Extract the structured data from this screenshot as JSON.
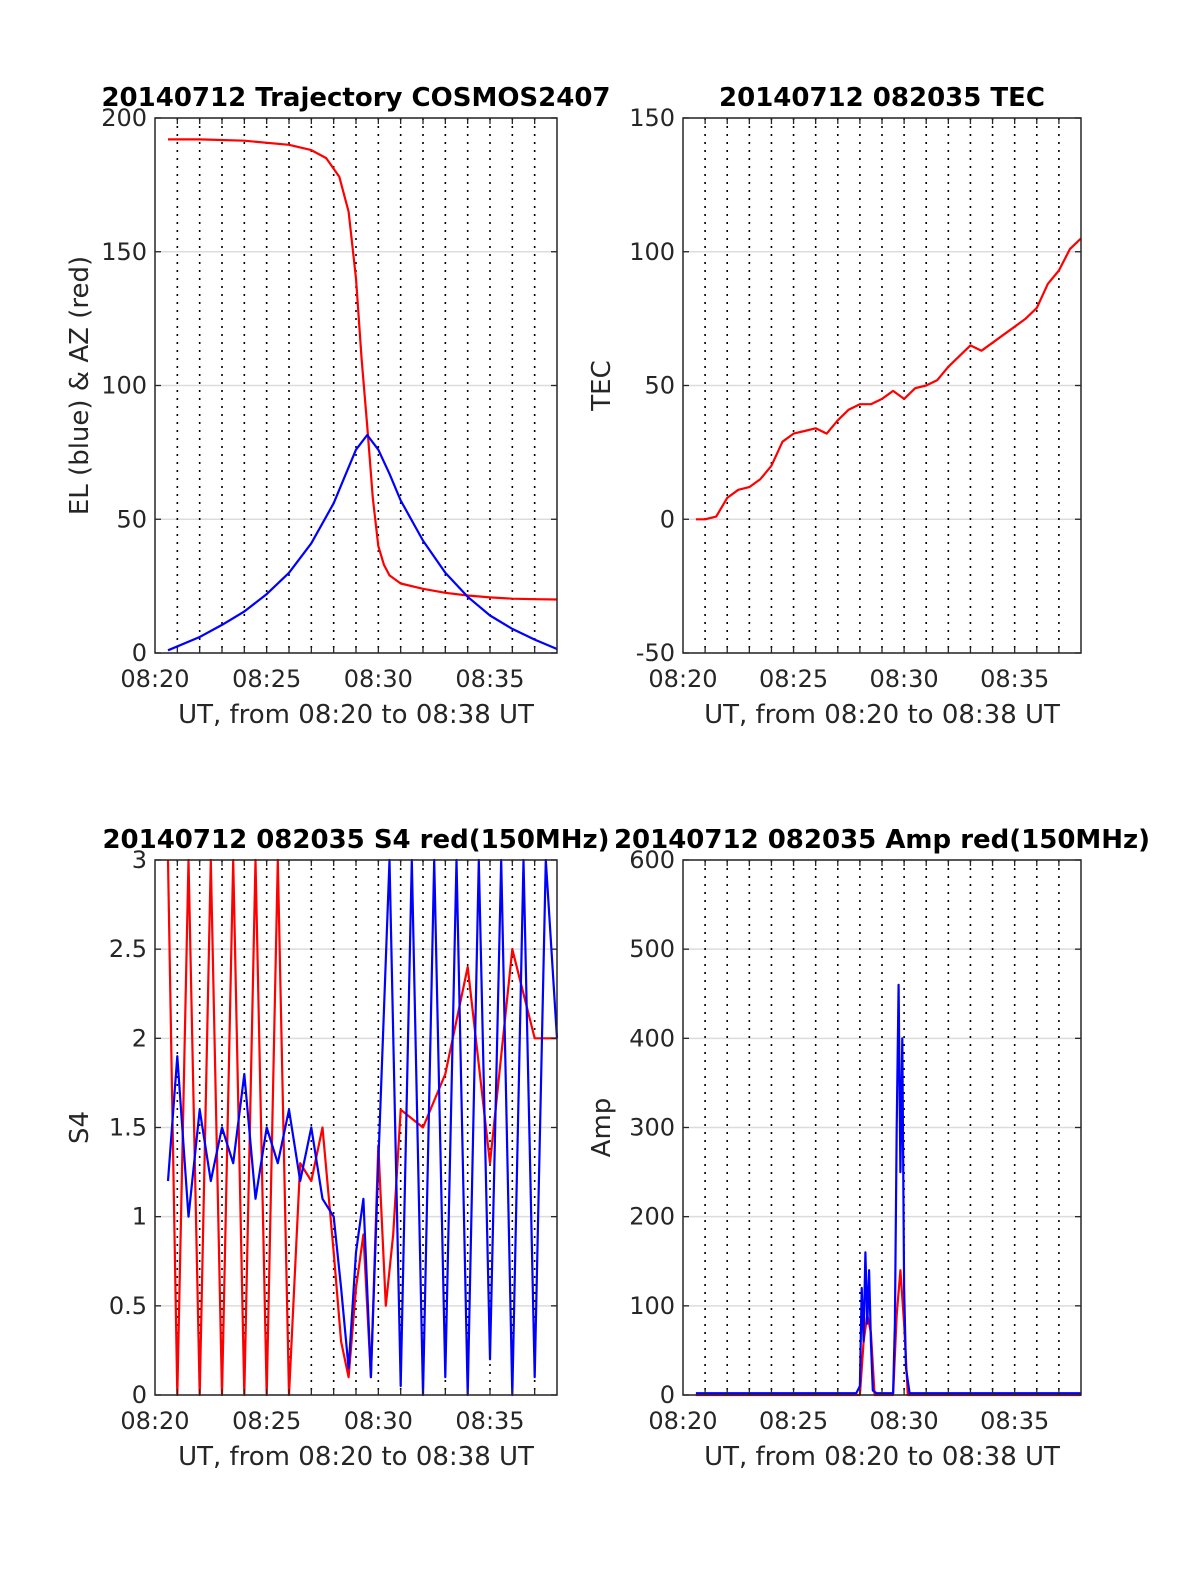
{
  "chart_data": [
    {
      "type": "line",
      "title": "20140712 Trajectory COSMOS2407",
      "xlabel": "UT, from 08:20 to 08:38 UT",
      "ylabel": "EL (blue) & AZ (red)",
      "x_unit": "UT time",
      "xlim": [
        "08:20",
        "08:38"
      ],
      "ylim": [
        0,
        200
      ],
      "yticks": [
        0,
        50,
        100,
        150,
        200
      ],
      "xticks": [
        "08:20",
        "08:25",
        "08:30",
        "08:35"
      ],
      "grid": "horizontal solid, vertical dotted every 1 min",
      "series": [
        {
          "color": "#ff0000",
          "x": [
            "08:20:35",
            "08:22:00",
            "08:24:00",
            "08:26:00",
            "08:27:00",
            "08:27:40",
            "08:28:15",
            "08:28:40",
            "08:29:00",
            "08:29:15",
            "08:29:30",
            "08:29:45",
            "08:30:00",
            "08:30:15",
            "08:30:30",
            "08:31:00",
            "08:32:00",
            "08:33:00",
            "08:34:00",
            "08:35:00",
            "08:36:00",
            "08:37:00",
            "08:38:00"
          ],
          "values": [
            192,
            192,
            191.5,
            190,
            188,
            185,
            178,
            165,
            140,
            110,
            85,
            58,
            40,
            33,
            29,
            26,
            24,
            22.5,
            21.5,
            20.8,
            20.3,
            20.1,
            20
          ]
        },
        {
          "color": "#0000ff",
          "x": [
            "08:20:35",
            "08:22:00",
            "08:23:00",
            "08:24:00",
            "08:25:00",
            "08:26:00",
            "08:27:00",
            "08:28:00",
            "08:28:30",
            "08:29:00",
            "08:29:30",
            "08:30:00",
            "08:30:30",
            "08:31:00",
            "08:32:00",
            "08:33:00",
            "08:34:00",
            "08:35:00",
            "08:36:00",
            "08:37:00",
            "08:38:00"
          ],
          "values": [
            1,
            6,
            10.5,
            15.5,
            22,
            30,
            41,
            56,
            66,
            76,
            81.5,
            76,
            67,
            57,
            42,
            30,
            21,
            14,
            9,
            5,
            1.5
          ]
        }
      ]
    },
    {
      "type": "line",
      "title": "20140712 082035 TEC",
      "xlabel": "UT, from 08:20 to 08:38 UT",
      "ylabel": "TEC",
      "xlim": [
        "08:20",
        "08:38"
      ],
      "ylim": [
        -50,
        150
      ],
      "yticks": [
        -50,
        0,
        50,
        100,
        150
      ],
      "xticks": [
        "08:20",
        "08:25",
        "08:30",
        "08:35"
      ],
      "grid": "horizontal solid, vertical dotted every 1 min",
      "series": [
        {
          "color": "#ff0000",
          "x": [
            "08:20:35",
            "08:21:00",
            "08:21:30",
            "08:22:00",
            "08:22:30",
            "08:23:00",
            "08:23:30",
            "08:24:00",
            "08:24:30",
            "08:25:00",
            "08:25:30",
            "08:26:00",
            "08:26:30",
            "08:27:00",
            "08:27:30",
            "08:28:00",
            "08:28:30",
            "08:29:00",
            "08:29:30",
            "08:30:00",
            "08:30:30",
            "08:31:00",
            "08:31:30",
            "08:32:00",
            "08:32:30",
            "08:33:00",
            "08:33:30",
            "08:34:00",
            "08:34:30",
            "08:35:00",
            "08:35:30",
            "08:36:00",
            "08:36:30",
            "08:37:00",
            "08:37:30",
            "08:38:00"
          ],
          "values": [
            0,
            0,
            1,
            8,
            11,
            12,
            15,
            20,
            29,
            32,
            33,
            34,
            32,
            37,
            41,
            43,
            43,
            45,
            48,
            45,
            49,
            50,
            52,
            57,
            61,
            65,
            63,
            66,
            69,
            72,
            75,
            79,
            88,
            93,
            101,
            105
          ]
        }
      ]
    },
    {
      "type": "line",
      "title": "20140712 082035 S4 red(150MHz)",
      "xlabel": "UT, from 08:20 to 08:38 UT",
      "ylabel": "S4",
      "xlim": [
        "08:20",
        "08:38"
      ],
      "ylim": [
        0,
        3
      ],
      "yticks": [
        0,
        0.5,
        1,
        1.5,
        2,
        2.5,
        3
      ],
      "xticks": [
        "08:20",
        "08:25",
        "08:30",
        "08:35"
      ],
      "grid": "horizontal solid, vertical dotted every 1 min",
      "series": [
        {
          "color": "#ff0000",
          "x": [
            "08:20:35",
            "08:21:00",
            "08:21:30",
            "08:22:00",
            "08:22:30",
            "08:23:00",
            "08:23:30",
            "08:24:00",
            "08:24:30",
            "08:25:00",
            "08:25:30",
            "08:26:00",
            "08:26:30",
            "08:27:00",
            "08:27:30",
            "08:28:00",
            "08:28:20",
            "08:28:40",
            "08:29:00",
            "08:29:20",
            "08:29:40",
            "08:30:00",
            "08:30:20",
            "08:30:40",
            "08:31:00",
            "08:32:00",
            "08:33:00",
            "08:34:00",
            "08:35:00",
            "08:36:00",
            "08:37:00",
            "08:38:00"
          ],
          "values": [
            3,
            0,
            3,
            0,
            3,
            0,
            3,
            0,
            3,
            0,
            3,
            0,
            1.3,
            1.2,
            1.5,
            0.8,
            0.3,
            0.1,
            0.6,
            0.9,
            0.1,
            1.4,
            0.5,
            0.9,
            1.6,
            1.5,
            1.8,
            2.4,
            1.3,
            2.5,
            2.0,
            2.0
          ]
        },
        {
          "color": "#0000ff",
          "x": [
            "08:20:35",
            "08:21:00",
            "08:21:30",
            "08:22:00",
            "08:22:30",
            "08:23:00",
            "08:23:30",
            "08:24:00",
            "08:24:30",
            "08:25:00",
            "08:25:30",
            "08:26:00",
            "08:26:30",
            "08:27:00",
            "08:27:30",
            "08:28:00",
            "08:28:20",
            "08:28:40",
            "08:29:00",
            "08:29:20",
            "08:29:40",
            "08:30:00",
            "08:30:30",
            "08:31:00",
            "08:31:30",
            "08:32:00",
            "08:32:30",
            "08:33:00",
            "08:33:30",
            "08:34:00",
            "08:34:30",
            "08:35:00",
            "08:35:30",
            "08:36:00",
            "08:36:30",
            "08:37:00",
            "08:37:30",
            "08:38:00"
          ],
          "values": [
            1.2,
            1.9,
            1.0,
            1.6,
            1.2,
            1.5,
            1.3,
            1.8,
            1.1,
            1.5,
            1.3,
            1.6,
            1.2,
            1.5,
            1.1,
            1.0,
            0.6,
            0.15,
            0.8,
            1.1,
            0.1,
            1.3,
            3,
            0.05,
            3,
            0,
            3,
            0.1,
            3,
            0,
            3,
            0.2,
            3,
            0,
            3,
            0.1,
            3,
            2.0
          ]
        }
      ]
    },
    {
      "type": "line",
      "title": "20140712 082035 Amp red(150MHz)",
      "xlabel": "UT, from 08:20 to 08:38 UT",
      "ylabel": "Amp",
      "xlim": [
        "08:20",
        "08:38"
      ],
      "ylim": [
        0,
        600
      ],
      "yticks": [
        0,
        100,
        200,
        300,
        400,
        500,
        600
      ],
      "xticks": [
        "08:20",
        "08:25",
        "08:30",
        "08:35"
      ],
      "grid": "horizontal solid, vertical dotted every 1 min",
      "series": [
        {
          "color": "#ff0000",
          "x": [
            "08:20:35",
            "08:28:00",
            "08:28:10",
            "08:28:20",
            "08:28:30",
            "08:28:40",
            "08:29:00",
            "08:29:30",
            "08:29:40",
            "08:29:50",
            "08:30:00",
            "08:30:10",
            "08:30:20",
            "08:38:00"
          ],
          "values": [
            0,
            0,
            60,
            90,
            70,
            0,
            0,
            0,
            90,
            140,
            80,
            0,
            0,
            0
          ]
        },
        {
          "color": "#0000ff",
          "x": [
            "08:20:35",
            "08:27:50",
            "08:28:00",
            "08:28:05",
            "08:28:10",
            "08:28:15",
            "08:28:20",
            "08:28:25",
            "08:28:30",
            "08:28:35",
            "08:28:45",
            "08:29:30",
            "08:29:35",
            "08:29:40",
            "08:29:45",
            "08:29:50",
            "08:29:55",
            "08:30:00",
            "08:30:05",
            "08:30:15",
            "08:38:00"
          ],
          "values": [
            2,
            2,
            10,
            120,
            60,
            160,
            80,
            140,
            60,
            5,
            2,
            2,
            80,
            300,
            460,
            250,
            400,
            120,
            30,
            2,
            2
          ]
        }
      ]
    }
  ]
}
